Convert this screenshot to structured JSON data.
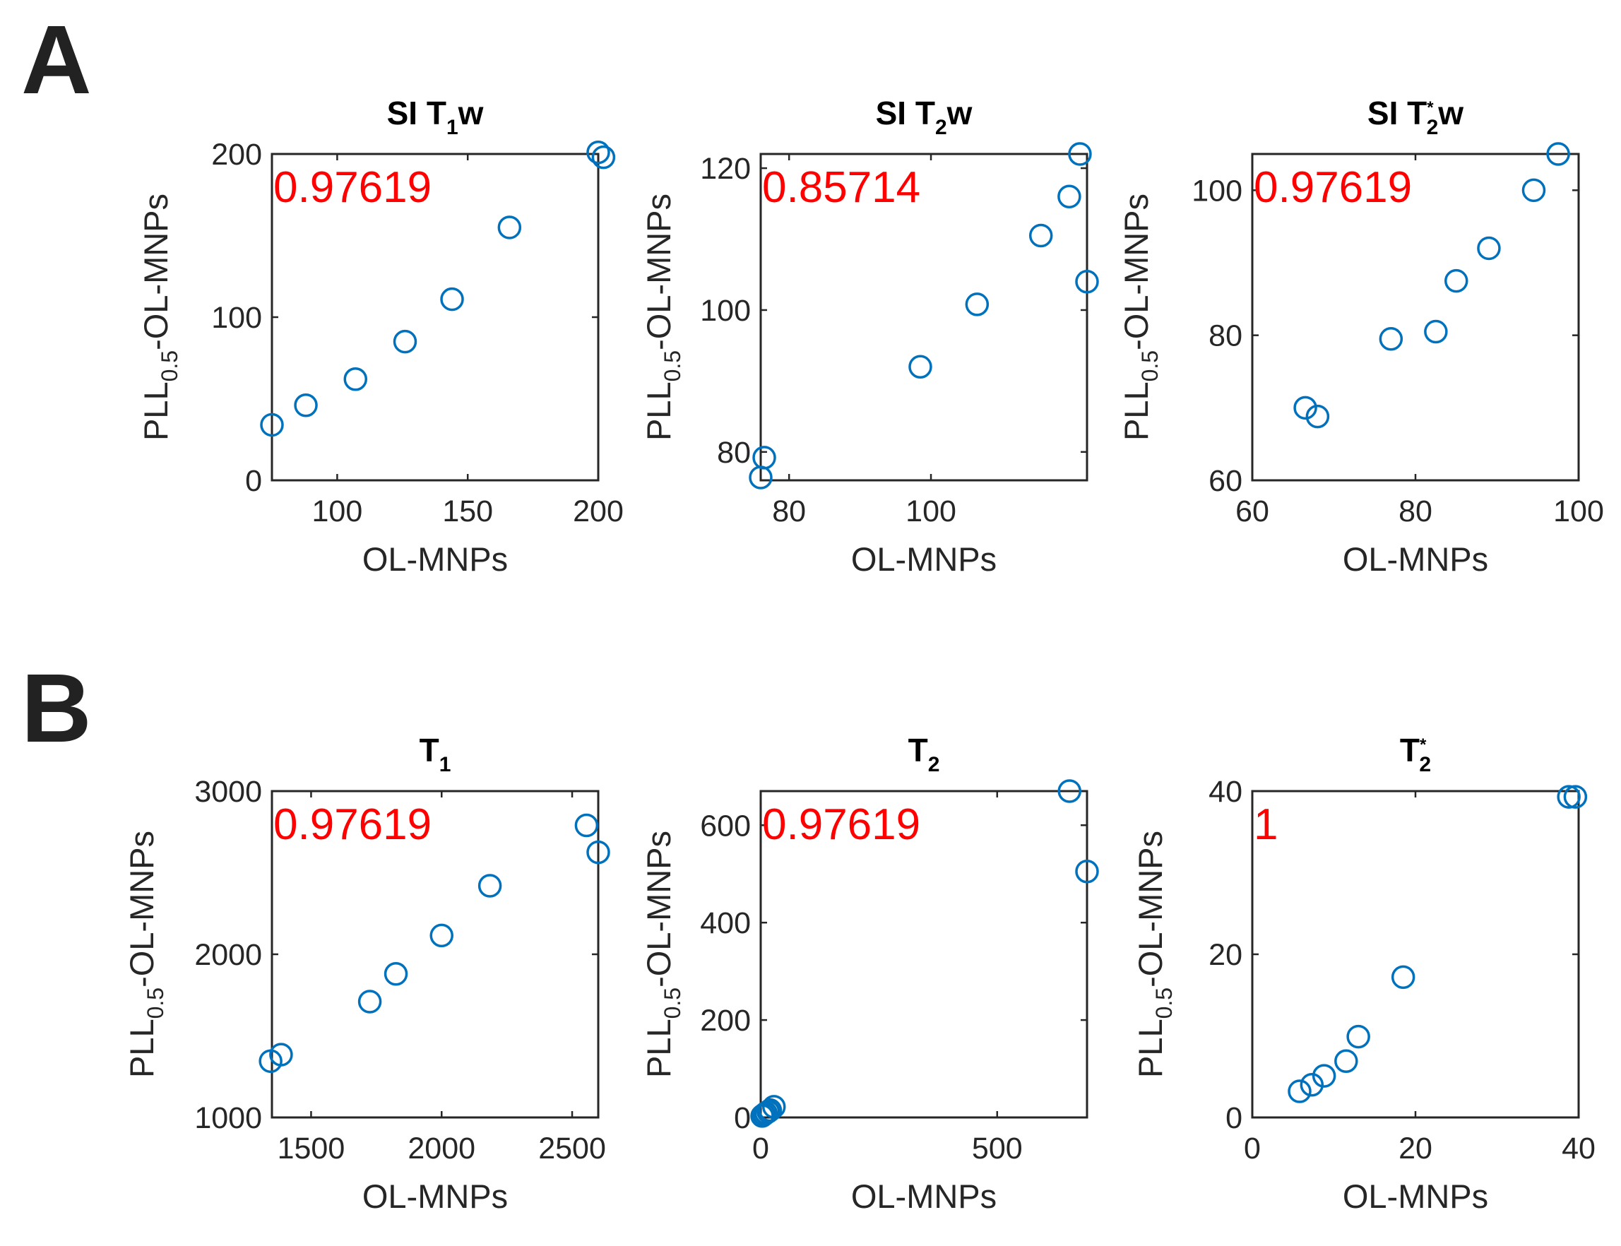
{
  "panels": [
    {
      "letter": "A"
    },
    {
      "letter": "B"
    }
  ],
  "chart_data": [
    {
      "type": "scatter",
      "panel": "A",
      "title": {
        "main": "SI T",
        "sub": "1",
        "sup": "",
        "suffix": "w"
      },
      "correlation": "0.97619",
      "xlabel": "OL-MNPs",
      "ylabel": {
        "main": "PLL",
        "sub": "0.5",
        "rest": "-OL-MNPs"
      },
      "xlim": [
        75,
        200
      ],
      "ylim": [
        0,
        200
      ],
      "xticks": [
        100,
        150,
        200
      ],
      "yticks": [
        0,
        100,
        200
      ],
      "points": [
        {
          "x": 75,
          "y": 34
        },
        {
          "x": 88,
          "y": 46
        },
        {
          "x": 107,
          "y": 62
        },
        {
          "x": 126,
          "y": 85
        },
        {
          "x": 144,
          "y": 111
        },
        {
          "x": 166,
          "y": 155
        },
        {
          "x": 200,
          "y": 201
        },
        {
          "x": 202,
          "y": 198
        }
      ]
    },
    {
      "type": "scatter",
      "panel": "A",
      "title": {
        "main": "SI T",
        "sub": "2",
        "sup": "",
        "suffix": "w"
      },
      "correlation": "0.85714",
      "xlabel": "OL-MNPs",
      "ylabel": {
        "main": "PLL",
        "sub": "0.5",
        "rest": "-OL-MNPs"
      },
      "xlim": [
        76,
        122
      ],
      "ylim": [
        76,
        122
      ],
      "xticks": [
        80,
        100
      ],
      "yticks": [
        80,
        100,
        120
      ],
      "points": [
        {
          "x": 76.5,
          "y": 79.2
        },
        {
          "x": 76.0,
          "y": 76.4
        },
        {
          "x": 98.5,
          "y": 92.0
        },
        {
          "x": 106.5,
          "y": 100.8
        },
        {
          "x": 115.5,
          "y": 110.5
        },
        {
          "x": 119.5,
          "y": 116.0
        },
        {
          "x": 121.0,
          "y": 122.0
        },
        {
          "x": 122.0,
          "y": 104.0
        }
      ]
    },
    {
      "type": "scatter",
      "panel": "A",
      "title": {
        "main": "SI T",
        "sub": "2",
        "sup": "*",
        "suffix": "w"
      },
      "correlation": "0.97619",
      "xlabel": "OL-MNPs",
      "ylabel": {
        "main": "PLL",
        "sub": "0.5",
        "rest": "-OL-MNPs"
      },
      "xlim": [
        60,
        100
      ],
      "ylim": [
        60,
        105
      ],
      "xticks": [
        60,
        80,
        100
      ],
      "yticks": [
        60,
        80,
        100
      ],
      "points": [
        {
          "x": 66.5,
          "y": 70.0
        },
        {
          "x": 68.0,
          "y": 68.8
        },
        {
          "x": 77.0,
          "y": 79.5
        },
        {
          "x": 82.5,
          "y": 80.5
        },
        {
          "x": 85.0,
          "y": 87.5
        },
        {
          "x": 89.0,
          "y": 92.0
        },
        {
          "x": 94.5,
          "y": 100.0
        },
        {
          "x": 97.5,
          "y": 105.0
        }
      ]
    },
    {
      "type": "scatter",
      "panel": "B",
      "title": {
        "main": "T",
        "sub": "1",
        "sup": "",
        "suffix": ""
      },
      "correlation": "0.97619",
      "xlabel": "OL-MNPs",
      "ylabel": {
        "main": "PLL",
        "sub": "0.5",
        "rest": "-OL-MNPs"
      },
      "xlim": [
        1350,
        2600
      ],
      "ylim": [
        1000,
        3000
      ],
      "xticks": [
        1500,
        2000,
        2500
      ],
      "yticks": [
        1000,
        2000,
        3000
      ],
      "points": [
        {
          "x": 1345,
          "y": 1345
        },
        {
          "x": 1385,
          "y": 1385
        },
        {
          "x": 1725,
          "y": 1710
        },
        {
          "x": 1825,
          "y": 1880
        },
        {
          "x": 2000,
          "y": 2115
        },
        {
          "x": 2185,
          "y": 2420
        },
        {
          "x": 2555,
          "y": 2790
        },
        {
          "x": 2600,
          "y": 2625
        }
      ]
    },
    {
      "type": "scatter",
      "panel": "B",
      "title": {
        "main": "T",
        "sub": "2",
        "sup": "",
        "suffix": ""
      },
      "correlation": "0.97619",
      "xlabel": "OL-MNPs",
      "ylabel": {
        "main": "PLL",
        "sub": "0.5",
        "rest": "-OL-MNPs"
      },
      "xlim": [
        0,
        690
      ],
      "ylim": [
        0,
        670
      ],
      "xticks": [
        0,
        500
      ],
      "yticks": [
        0,
        200,
        400,
        600
      ],
      "points": [
        {
          "x": 3,
          "y": 3
        },
        {
          "x": 7,
          "y": 6
        },
        {
          "x": 11,
          "y": 9
        },
        {
          "x": 16,
          "y": 12
        },
        {
          "x": 20,
          "y": 15
        },
        {
          "x": 28,
          "y": 22
        },
        {
          "x": 653,
          "y": 670
        },
        {
          "x": 690,
          "y": 505
        }
      ]
    },
    {
      "type": "scatter",
      "panel": "B",
      "title": {
        "main": "T",
        "sub": "2",
        "sup": "*",
        "suffix": ""
      },
      "correlation": "1",
      "xlabel": "OL-MNPs",
      "ylabel": {
        "main": "PLL",
        "sub": "0.5",
        "rest": "-OL-MNPs"
      },
      "xlim": [
        0,
        40
      ],
      "ylim": [
        0,
        40
      ],
      "xticks": [
        0,
        20,
        40
      ],
      "yticks": [
        0,
        20,
        40
      ],
      "points": [
        {
          "x": 5.8,
          "y": 3.2
        },
        {
          "x": 7.3,
          "y": 4.0
        },
        {
          "x": 8.8,
          "y": 5.1
        },
        {
          "x": 11.5,
          "y": 6.9
        },
        {
          "x": 13.0,
          "y": 9.9
        },
        {
          "x": 18.5,
          "y": 17.2
        },
        {
          "x": 38.8,
          "y": 39.3
        },
        {
          "x": 39.6,
          "y": 39.3
        }
      ]
    }
  ]
}
